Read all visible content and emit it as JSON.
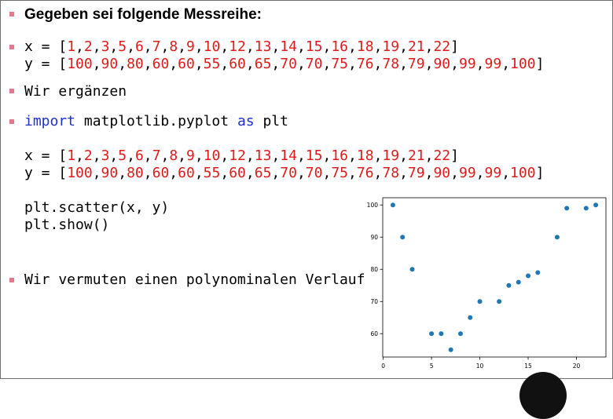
{
  "heading": "Gegeben sei folgende Messreihe:",
  "series_line": {
    "x_prefix": "x = [",
    "x_values": [
      "1",
      "2",
      "3",
      "5",
      "6",
      "7",
      "8",
      "9",
      "10",
      "12",
      "13",
      "14",
      "15",
      "16",
      "18",
      "19",
      "21",
      "22"
    ],
    "y_prefix": "y = [",
    "y_values": [
      "100",
      "90",
      "80",
      "60",
      "60",
      "55",
      "60",
      "65",
      "70",
      "70",
      "75",
      "76",
      "78",
      "79",
      "90",
      "99",
      "99",
      "100"
    ],
    "suffix": "]"
  },
  "erganzen": "Wir ergänzen",
  "code": {
    "import_kw": "import",
    "import_mod": " matplotlib.pyplot ",
    "as_kw": "as",
    "alias": " plt",
    "scatter": "plt.scatter(x, y)",
    "show": "plt.show()"
  },
  "conclusion": "Wir vermuten einen polynominalen Verlauf",
  "colors": {
    "bullet": "#e07a8e",
    "number": "#e01b1b",
    "keyword": "#1f2fd0",
    "point": "#1f77b4"
  },
  "chart_data": {
    "type": "scatter",
    "x": [
      1,
      2,
      3,
      5,
      6,
      7,
      8,
      9,
      10,
      12,
      13,
      14,
      15,
      16,
      18,
      19,
      21,
      22
    ],
    "y": [
      100,
      90,
      80,
      60,
      60,
      55,
      60,
      65,
      70,
      70,
      75,
      76,
      78,
      79,
      90,
      99,
      99,
      100
    ],
    "xlim": [
      -0.05,
      23.05
    ],
    "ylim": [
      52.75,
      102.25
    ],
    "xticks": [
      0,
      5,
      10,
      15,
      20
    ],
    "yticks": [
      60,
      70,
      80,
      90,
      100
    ],
    "grid": false
  }
}
